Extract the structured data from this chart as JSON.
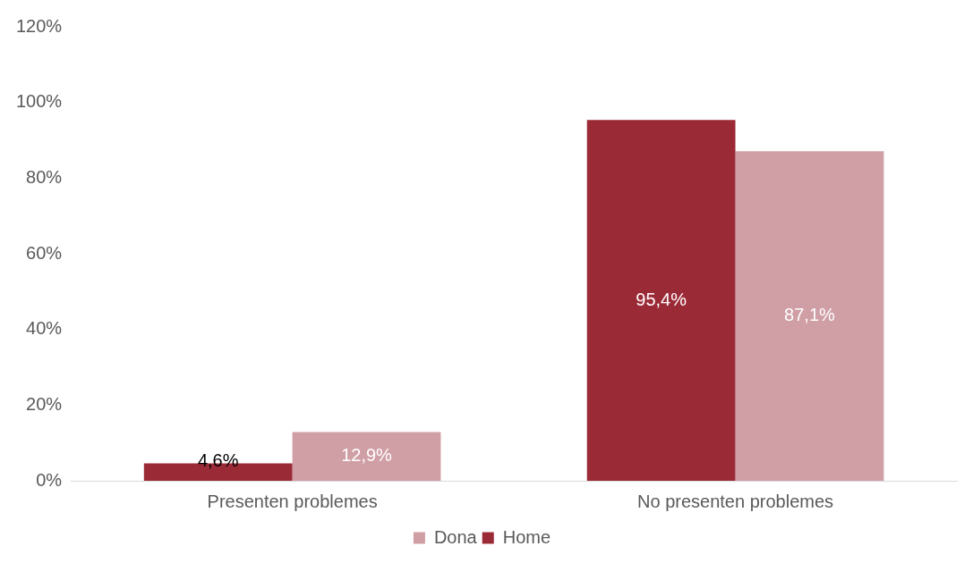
{
  "chart_data": {
    "type": "bar",
    "categories": [
      "Presenten problemes",
      "No presenten problemes"
    ],
    "series": [
      {
        "name": "Home",
        "color": "#9b2a37",
        "values": [
          4.6,
          95.4
        ],
        "value_labels": [
          "4,6%",
          "95,4%"
        ]
      },
      {
        "name": "Dona",
        "color": "#d09ea5",
        "values": [
          12.9,
          87.1
        ],
        "value_labels": [
          "12,9%",
          "87,1%"
        ]
      }
    ],
    "ylim": [
      0,
      120
    ],
    "yticks": [
      {
        "value": 0,
        "label": "0%"
      },
      {
        "value": 20,
        "label": "20%"
      },
      {
        "value": 40,
        "label": "40%"
      },
      {
        "value": 60,
        "label": "60%"
      },
      {
        "value": 80,
        "label": "80%"
      },
      {
        "value": 100,
        "label": "100%"
      },
      {
        "value": 120,
        "label": "120%"
      }
    ],
    "grid": false,
    "legend": "bottom"
  }
}
